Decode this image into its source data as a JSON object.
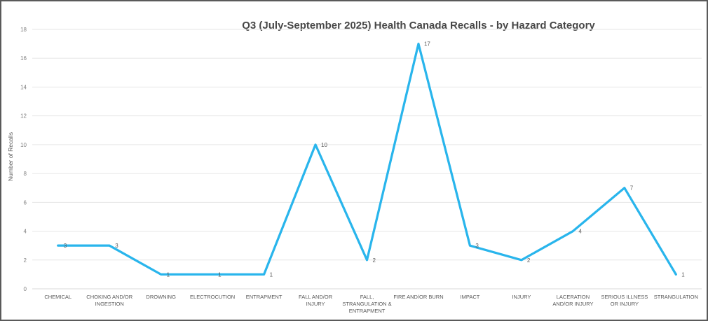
{
  "window": {
    "background": "#FFFFFF",
    "border_color": "#5A5A5A"
  },
  "chart_data": {
    "type": "line",
    "title": "Q3 (July-September 2025) Health Canada Recalls - by Hazard Category",
    "xlabel": "",
    "ylabel": "Number of Recalls",
    "categories": [
      "CHEMICAL",
      "CHOKING AND/OR INGESTION",
      "DROWNING",
      "ELECTROCUTION",
      "ENTRAPMENT",
      "FALL AND/OR INJURY",
      "FALL, STRANGULATION & ENTRAPMENT",
      "FIRE AND/OR BURN",
      "IMPACT",
      "INJURY",
      "LACERATION AND/OR INJURY",
      "SERIOUS ILLNESS OR INJURY",
      "STRANGULATION"
    ],
    "category_label_lines": [
      [
        "CHEMICAL"
      ],
      [
        "CHOKING AND/OR",
        "INGESTION"
      ],
      [
        "DROWNING"
      ],
      [
        "ELECTROCUTION"
      ],
      [
        "ENTRAPMENT"
      ],
      [
        "FALL AND/OR",
        "INJURY"
      ],
      [
        "FALL,",
        "STRANGULATION &",
        "ENTRAPMENT"
      ],
      [
        "FIRE AND/OR BURN"
      ],
      [
        "IMPACT"
      ],
      [
        "INJURY"
      ],
      [
        "LACERATION",
        "AND/OR INJURY"
      ],
      [
        "SERIOUS ILLNESS",
        "OR INJURY"
      ],
      [
        "STRANGULATION"
      ]
    ],
    "values": [
      3,
      3,
      1,
      1,
      1,
      10,
      2,
      17,
      3,
      2,
      4,
      7,
      1
    ],
    "data_labels_shown": true,
    "ylim": [
      0,
      18
    ],
    "y_ticks": [
      0,
      2,
      4,
      6,
      8,
      10,
      12,
      14,
      16,
      18
    ],
    "grid": true,
    "legend": "none",
    "line_color": "#29B5EC",
    "gridline_color": "#E6E6E6",
    "axis_line_color": "#D9D9D9",
    "title_color": "#474747",
    "label_color": "#595959",
    "tick_color": "#7F7F7F"
  }
}
